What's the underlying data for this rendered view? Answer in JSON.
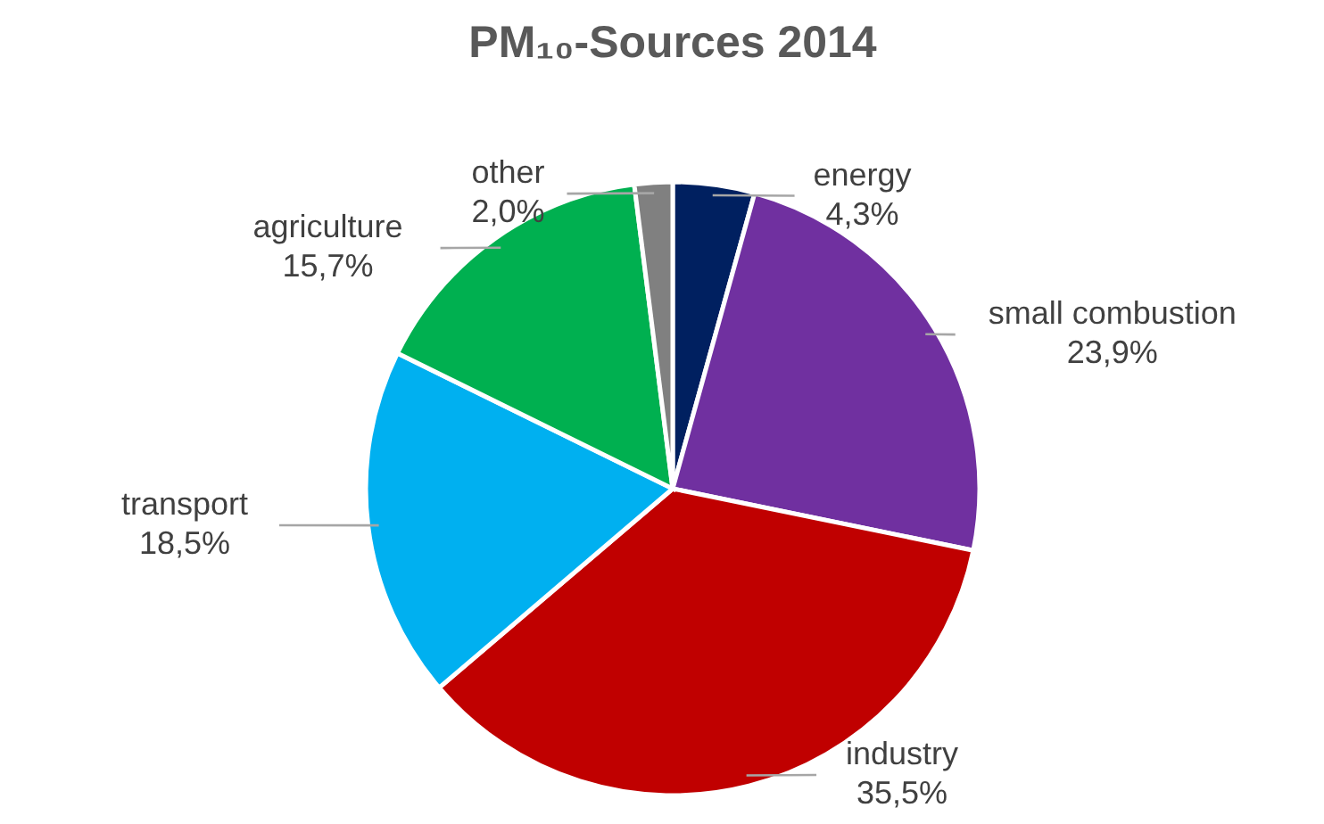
{
  "chart_data": {
    "type": "pie",
    "title": "PM₁₀-Sources 2014",
    "categories": [
      "energy",
      "small combustion",
      "industry",
      "transport",
      "agriculture",
      "other"
    ],
    "values": [
      4.3,
      23.9,
      35.5,
      18.5,
      15.7,
      2.0
    ],
    "value_labels": [
      "4,3%",
      "23,9%",
      "35,5%",
      "18,5%",
      "15,7%",
      "2,0%"
    ],
    "colors": [
      "#002060",
      "#7030a0",
      "#c00000",
      "#00b0f0",
      "#00b050",
      "#808080"
    ]
  }
}
